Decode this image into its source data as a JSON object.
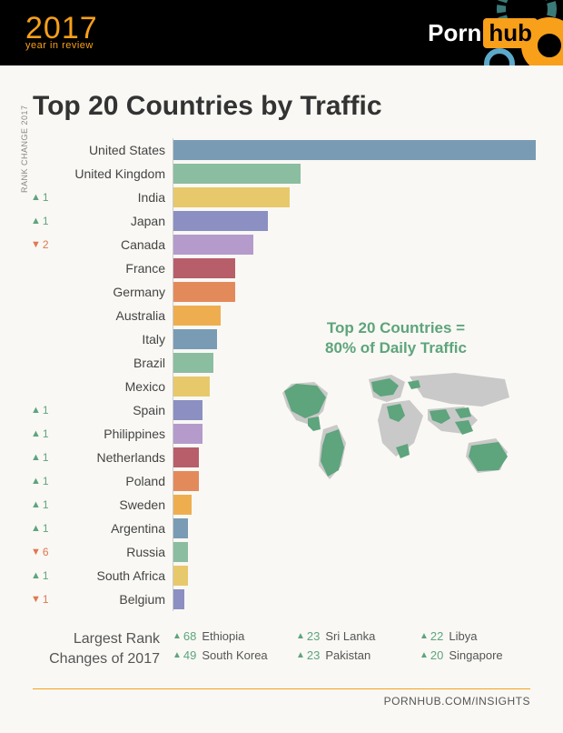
{
  "header": {
    "year": "2017",
    "subtitle": "year in review",
    "logo_left": "Porn",
    "logo_right": "hub",
    "deco_colors": [
      "#f8a01a",
      "#3a7a78",
      "#5da9c9"
    ]
  },
  "title": "Top 20 Countries by Traffic",
  "axis_label": "RANK CHANGE 2017",
  "chart": {
    "max_value": 100,
    "bar_colors": [
      "#7a9bb4",
      "#8bbda0",
      "#e7c96b",
      "#8b8fc2",
      "#b49bcb",
      "#b85e6a",
      "#e38a5b",
      "#eeae4f",
      "#7a9bb4",
      "#8bbda0",
      "#e7c96b",
      "#8b8fc2",
      "#b49bcb",
      "#b85e6a",
      "#e38a5b",
      "#eeae4f",
      "#7a9bb4",
      "#8bbda0",
      "#e7c96b",
      "#8b8fc2"
    ],
    "rows": [
      {
        "country": "United States",
        "value": 100,
        "change": null,
        "dir": null
      },
      {
        "country": "United Kingdom",
        "value": 35,
        "change": null,
        "dir": null
      },
      {
        "country": "India",
        "value": 32,
        "change": 1,
        "dir": "up"
      },
      {
        "country": "Japan",
        "value": 26,
        "change": 1,
        "dir": "up"
      },
      {
        "country": "Canada",
        "value": 22,
        "change": 2,
        "dir": "down"
      },
      {
        "country": "France",
        "value": 17,
        "change": null,
        "dir": null
      },
      {
        "country": "Germany",
        "value": 17,
        "change": null,
        "dir": null
      },
      {
        "country": "Australia",
        "value": 13,
        "change": null,
        "dir": null
      },
      {
        "country": "Italy",
        "value": 12,
        "change": null,
        "dir": null
      },
      {
        "country": "Brazil",
        "value": 11,
        "change": null,
        "dir": null
      },
      {
        "country": "Mexico",
        "value": 10,
        "change": null,
        "dir": null
      },
      {
        "country": "Spain",
        "value": 8,
        "change": 1,
        "dir": "up"
      },
      {
        "country": "Philippines",
        "value": 8,
        "change": 1,
        "dir": "up"
      },
      {
        "country": "Netherlands",
        "value": 7,
        "change": 1,
        "dir": "up"
      },
      {
        "country": "Poland",
        "value": 7,
        "change": 1,
        "dir": "up"
      },
      {
        "country": "Sweden",
        "value": 5,
        "change": 1,
        "dir": "up"
      },
      {
        "country": "Argentina",
        "value": 4,
        "change": 1,
        "dir": "up"
      },
      {
        "country": "Russia",
        "value": 4,
        "change": 6,
        "dir": "down"
      },
      {
        "country": "South Africa",
        "value": 4,
        "change": 1,
        "dir": "up"
      },
      {
        "country": "Belgium",
        "value": 3,
        "change": 1,
        "dir": "down"
      }
    ]
  },
  "callout": {
    "line1": "Top 20 Countries =",
    "line2": "80% of Daily Traffic",
    "map_land": "#c9c9c9",
    "map_highlight": "#5ea47c"
  },
  "bottom": {
    "label_line1": "Largest Rank",
    "label_line2": "Changes of 2017",
    "items": [
      {
        "change": 68,
        "country": "Ethiopia"
      },
      {
        "change": 23,
        "country": "Sri Lanka"
      },
      {
        "change": 22,
        "country": "Libya"
      },
      {
        "change": 49,
        "country": "South Korea"
      },
      {
        "change": 23,
        "country": "Pakistan"
      },
      {
        "change": 20,
        "country": "Singapore"
      }
    ]
  },
  "footer": "PORNHUB.COM/INSIGHTS"
}
